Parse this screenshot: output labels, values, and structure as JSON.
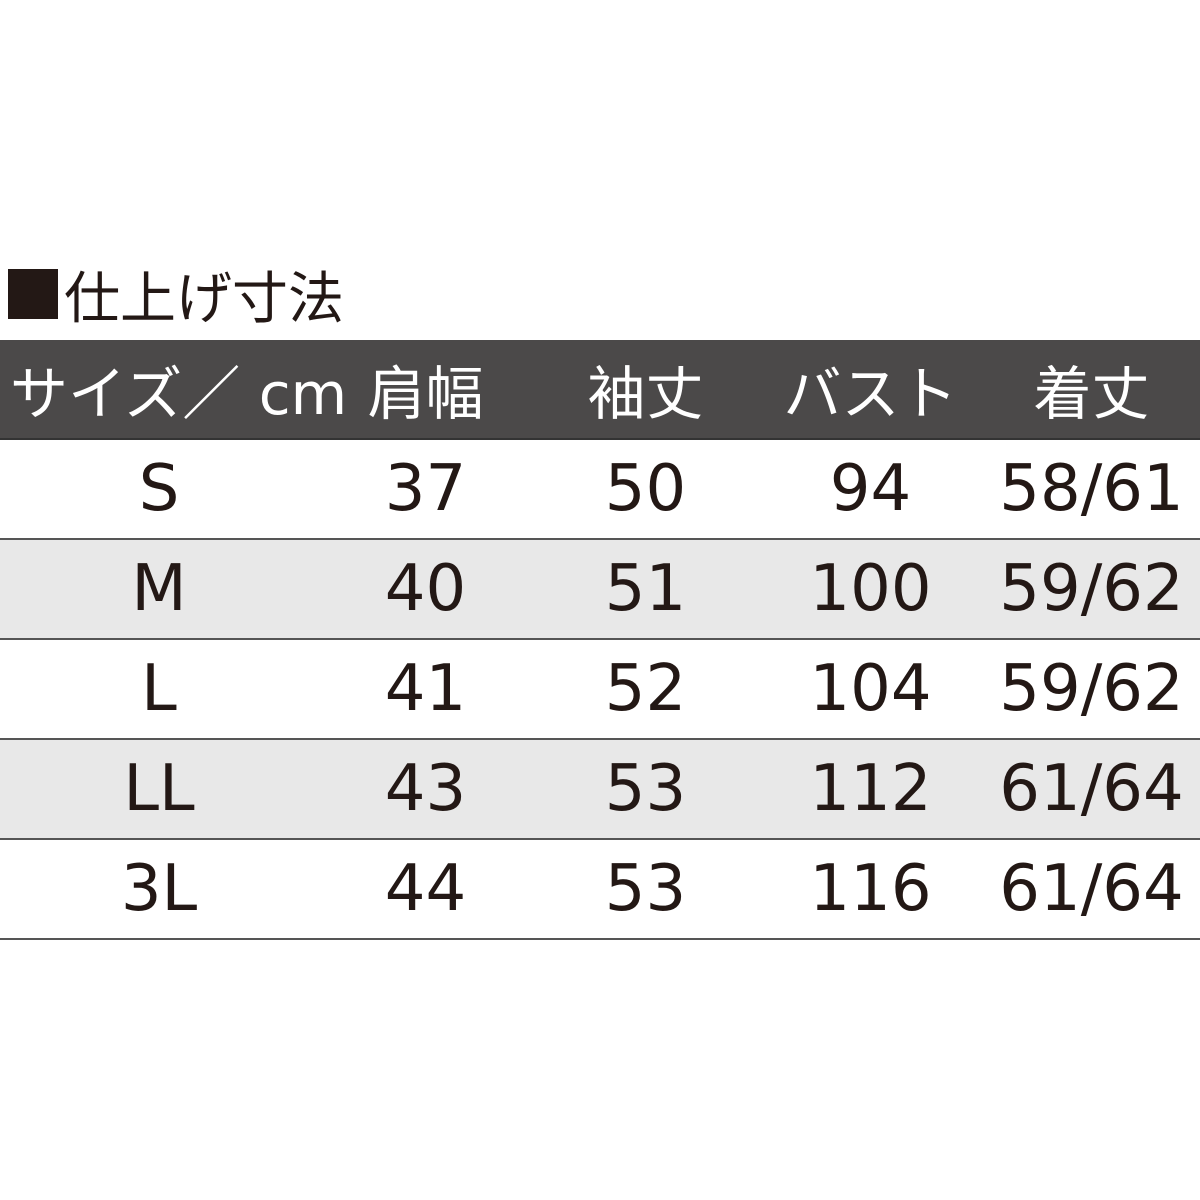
{
  "title": "仕上げ寸法",
  "icon": "black-square",
  "colors": {
    "header_bg": "#4b4949",
    "alt_row_bg": "#e8e8e8",
    "text": "#231815"
  },
  "table": {
    "headers": [
      "サイズ／ cm",
      "肩幅",
      "袖丈",
      "バスト",
      "着丈"
    ],
    "rows": [
      [
        "S",
        "37",
        "50",
        "94",
        "58/61"
      ],
      [
        "M",
        "40",
        "51",
        "100",
        "59/62"
      ],
      [
        "L",
        "41",
        "52",
        "104",
        "59/62"
      ],
      [
        "LL",
        "43",
        "53",
        "112",
        "61/64"
      ],
      [
        "3L",
        "44",
        "53",
        "116",
        "61/64"
      ]
    ]
  }
}
